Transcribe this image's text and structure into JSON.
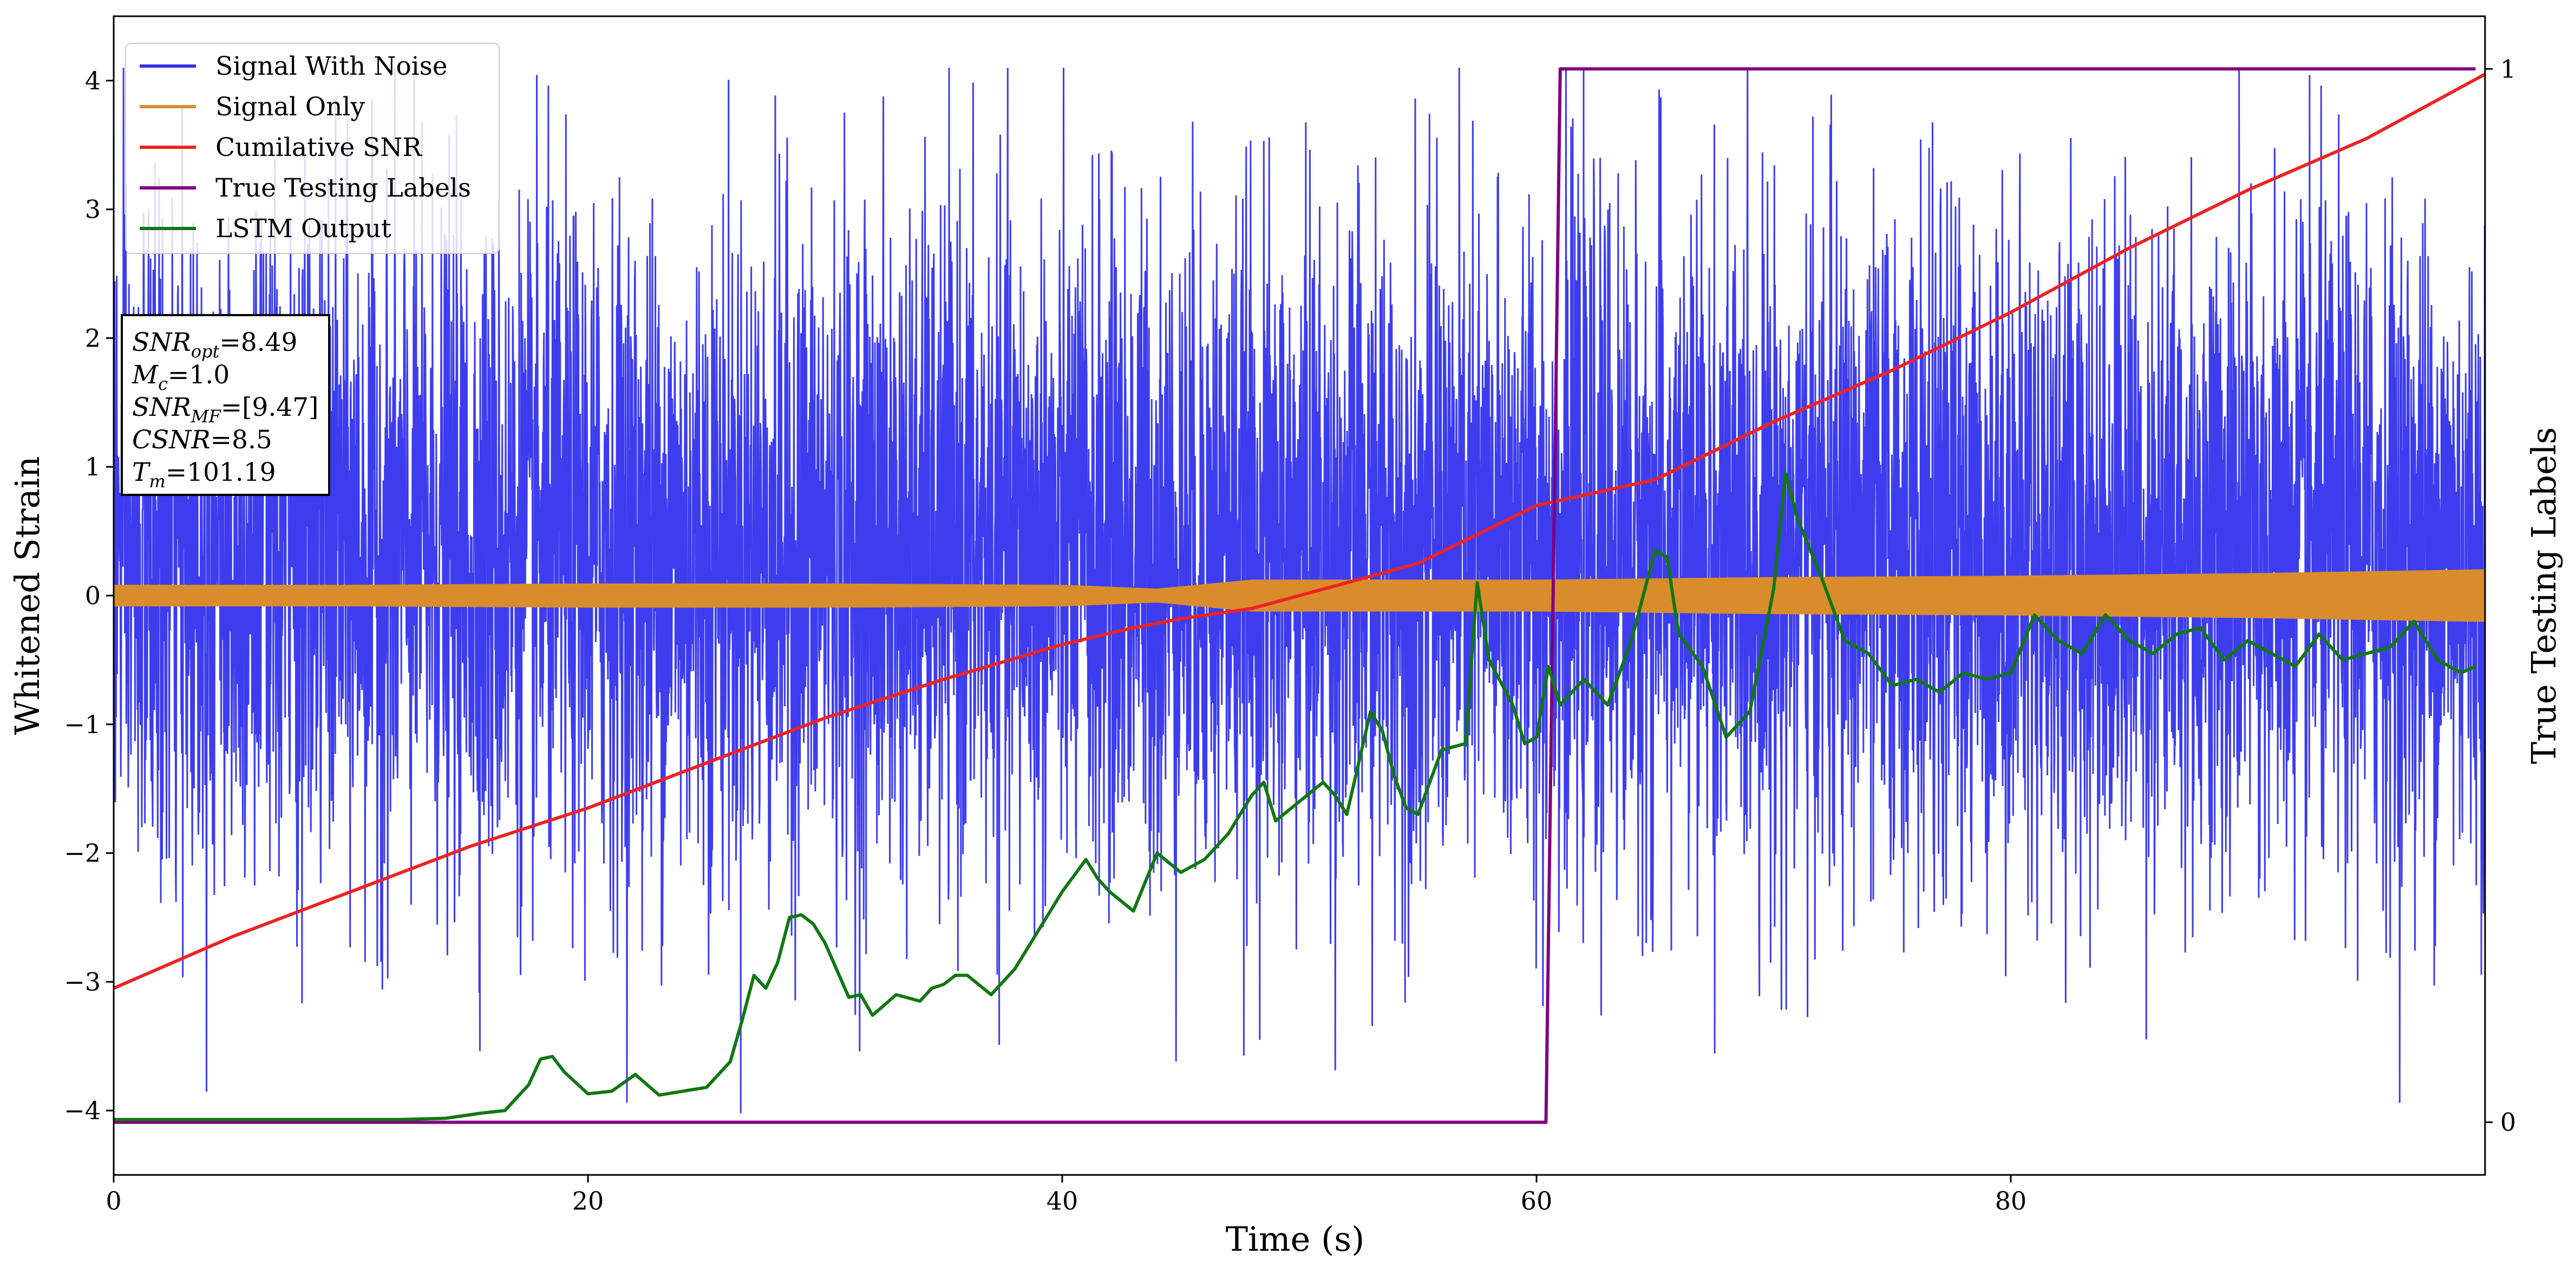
{
  "chart_data": {
    "type": "line",
    "xlabel": "Time (s)",
    "ylabel": "Whitened Strain",
    "y2label": "True Testing Labels",
    "xlim": [
      0,
      100
    ],
    "ylim": [
      -4.5,
      4.5
    ],
    "y2lim": [
      -0.05,
      1.05
    ],
    "x_ticks": [
      0,
      20,
      40,
      60,
      80
    ],
    "y_ticks": [
      -4,
      -3,
      -2,
      -1,
      0,
      1,
      2,
      3,
      4
    ],
    "y2_ticks": [
      0,
      1
    ],
    "x_tick_labels": [
      "0",
      "20",
      "40",
      "60",
      "80"
    ],
    "y_tick_labels": [
      "−4",
      "−3",
      "−2",
      "−1",
      "0",
      "1",
      "2",
      "3",
      "4"
    ],
    "y2_tick_labels": [
      "0",
      "1"
    ],
    "grid": false,
    "legend_position": "top-left",
    "legend": [
      "Signal With Noise",
      "Signal Only",
      "Cumilative SNR",
      "True Testing Labels",
      "LSTM Output"
    ],
    "info_box": {
      "position": "upper-left",
      "lines": [
        {
          "name": "SNR",
          "sub": "opt",
          "value": "=8.49"
        },
        {
          "name": "M",
          "sub": "c",
          "value": "=1.0"
        },
        {
          "name": "SNR",
          "sub": "MF",
          "value": "=[9.47]"
        },
        {
          "name": "CSNR",
          "sub": "",
          "value": "=8.5"
        },
        {
          "name": "T",
          "sub": "m",
          "value": "=101.19"
        }
      ]
    },
    "series": [
      {
        "name": "Signal With Noise",
        "color": "#3333ee",
        "axis": "left",
        "kind": "noise-band",
        "note_typical_range": [
          -2.0,
          2.7
        ],
        "extreme_max": 4.1,
        "extreme_min": -4.1
      },
      {
        "name": "Signal Only",
        "color": "#d98c2b",
        "axis": "left",
        "kind": "envelope",
        "x": [
          0,
          10,
          20,
          30,
          40,
          44,
          48,
          55,
          60,
          70,
          80,
          90,
          100
        ],
        "upper": [
          0.08,
          0.08,
          0.09,
          0.09,
          0.08,
          0.05,
          0.12,
          0.12,
          0.12,
          0.14,
          0.15,
          0.17,
          0.2
        ],
        "lower": [
          -0.08,
          -0.08,
          -0.09,
          -0.09,
          -0.08,
          -0.05,
          -0.12,
          -0.12,
          -0.12,
          -0.14,
          -0.15,
          -0.17,
          -0.2
        ]
      },
      {
        "name": "Cumilative SNR",
        "color": "#ee2222",
        "axis": "left",
        "x": [
          0,
          5,
          10,
          15,
          20,
          25,
          30,
          35,
          40,
          43,
          45,
          48,
          50,
          55,
          60,
          65,
          70,
          75,
          80,
          85,
          90,
          95,
          100
        ],
        "y": [
          -3.05,
          -2.65,
          -2.3,
          -1.95,
          -1.65,
          -1.3,
          -0.95,
          -0.65,
          -0.38,
          -0.25,
          -0.18,
          -0.1,
          0.0,
          0.25,
          0.7,
          0.9,
          1.35,
          1.75,
          2.2,
          2.7,
          3.15,
          3.55,
          4.05
        ]
      },
      {
        "name": "True Testing Labels",
        "color": "#7f007f",
        "axis": "right",
        "x": [
          0,
          60.4,
          61.0,
          99.6
        ],
        "y": [
          0,
          0,
          1,
          1
        ]
      },
      {
        "name": "LSTM Output",
        "color": "#117711",
        "axis": "left",
        "x": [
          0,
          5,
          10,
          12,
          14,
          15.5,
          16.5,
          17,
          17.5,
          18,
          18.5,
          19,
          20,
          21,
          22,
          23,
          24,
          25,
          26,
          26.5,
          27,
          27.5,
          28,
          28.5,
          29,
          29.5,
          30,
          31,
          31.5,
          32,
          33,
          34,
          34.5,
          35,
          35.5,
          36,
          37,
          38,
          39,
          40,
          41,
          41.5,
          42,
          43,
          44,
          45,
          46,
          47,
          48,
          48.5,
          49,
          50,
          51,
          51.5,
          52,
          53,
          53.5,
          54,
          54.5,
          55,
          56,
          57,
          57.5,
          58,
          59,
          59.5,
          60,
          60.5,
          61,
          62,
          63,
          64,
          65,
          65.5,
          66,
          67,
          68,
          69,
          70,
          70.5,
          71,
          72,
          73,
          74,
          75,
          76,
          77,
          78,
          79,
          80,
          81,
          82,
          83,
          84,
          85,
          86,
          87,
          88,
          89,
          90,
          91,
          92,
          93,
          94,
          95,
          96,
          97,
          98,
          99,
          99.6
        ],
        "y": [
          -4.07,
          -4.07,
          -4.07,
          -4.07,
          -4.06,
          -4.02,
          -4.0,
          -3.9,
          -3.8,
          -3.6,
          -3.58,
          -3.7,
          -3.87,
          -3.85,
          -3.72,
          -3.88,
          -3.85,
          -3.82,
          -3.62,
          -3.3,
          -2.95,
          -3.05,
          -2.85,
          -2.5,
          -2.48,
          -2.55,
          -2.7,
          -3.12,
          -3.1,
          -3.26,
          -3.1,
          -3.15,
          -3.05,
          -3.02,
          -2.95,
          -2.95,
          -3.1,
          -2.9,
          -2.6,
          -2.3,
          -2.05,
          -2.2,
          -2.3,
          -2.45,
          -2.0,
          -2.15,
          -2.05,
          -1.85,
          -1.55,
          -1.45,
          -1.75,
          -1.6,
          -1.45,
          -1.55,
          -1.7,
          -0.9,
          -1.05,
          -1.4,
          -1.65,
          -1.7,
          -1.2,
          -1.15,
          0.1,
          -0.5,
          -0.85,
          -1.15,
          -1.1,
          -0.55,
          -0.85,
          -0.65,
          -0.85,
          -0.35,
          0.35,
          0.3,
          -0.3,
          -0.55,
          -1.1,
          -0.9,
          0.05,
          0.95,
          0.6,
          0.15,
          -0.35,
          -0.45,
          -0.7,
          -0.65,
          -0.75,
          -0.6,
          -0.65,
          -0.6,
          -0.15,
          -0.35,
          -0.45,
          -0.15,
          -0.35,
          -0.45,
          -0.3,
          -0.25,
          -0.5,
          -0.35,
          -0.45,
          -0.55,
          -0.3,
          -0.5,
          -0.45,
          -0.4,
          -0.2,
          -0.5,
          -0.6,
          -0.55
        ]
      }
    ]
  }
}
